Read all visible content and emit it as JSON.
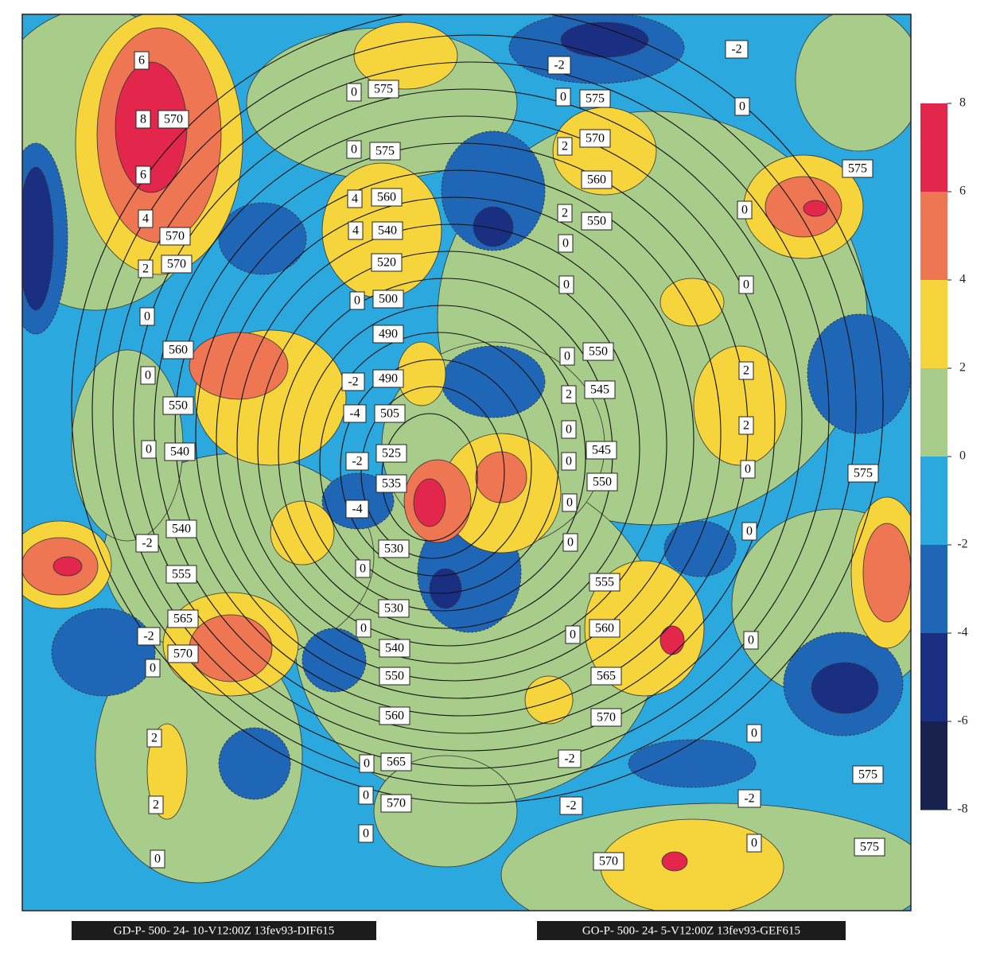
{
  "map": {
    "labels": [
      "6",
      "8",
      "570",
      "6",
      "4",
      "570",
      "2",
      "570",
      "0",
      "560",
      "0",
      "550",
      "0",
      "540",
      "540",
      "-2",
      "555",
      "565",
      "-2",
      "570",
      "0",
      "2",
      "2",
      "0",
      "0",
      "575",
      "0",
      "575",
      "4",
      "560",
      "4",
      "540",
      "520",
      "0",
      "500",
      "490",
      "-2",
      "490",
      "-4",
      "505",
      "-2",
      "525",
      "535",
      "-4",
      "530",
      "0",
      "530",
      "0",
      "540",
      "550",
      "560",
      "0",
      "565",
      "0",
      "570",
      "0",
      "-2",
      "-2",
      "0",
      "575",
      "0",
      "2",
      "570",
      "560",
      "2",
      "550",
      "0",
      "0",
      "0",
      "0",
      "550",
      "0",
      "545",
      "2",
      "2",
      "2",
      "0",
      "545",
      "0",
      "550",
      "0",
      "0",
      "0",
      "0",
      "555",
      "560",
      "0",
      "0",
      "565",
      "570",
      "0",
      "-2",
      "-2",
      "-2",
      "0",
      "570",
      "575",
      "575",
      "575",
      "575"
    ],
    "colorbar": {
      "ticks": [
        8,
        6,
        4,
        2,
        0,
        -2,
        -4,
        -6,
        -8
      ],
      "colors": [
        "#e3264b",
        "#ef7653",
        "#f5d43c",
        "#a8cd8a",
        "#2ba8de",
        "#1f66b6",
        "#1b2f82",
        "#17224f"
      ]
    },
    "captions": [
      "GD-P- 500- 24- 10-V12:00Z 13fev93-DIF615",
      "GO-P- 500- 24- 5-V12:00Z 13fev93-GEF615"
    ]
  }
}
